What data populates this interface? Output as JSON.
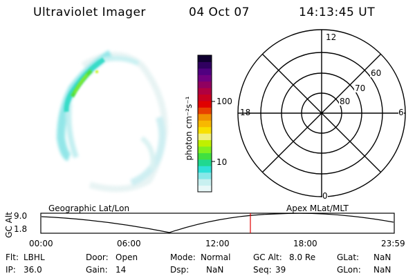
{
  "header": {
    "instrument": "Ultraviolet Imager",
    "date": "04 Oct 07",
    "time": "14:13:45 UT"
  },
  "colorbar": {
    "unit_label": "photon cm⁻²s⁻¹",
    "ticks": [
      "100",
      "10"
    ],
    "colors": [
      "#e8f8f8",
      "#c8f0f0",
      "#88e8e8",
      "#30e0d8",
      "#20d890",
      "#40e040",
      "#80f020",
      "#c0f000",
      "#f0f080",
      "#f8e000",
      "#f8b800",
      "#f09000",
      "#e84000",
      "#e00000",
      "#c80020",
      "#b00040",
      "#900060",
      "#700080",
      "#500080",
      "#300060",
      "#100030"
    ]
  },
  "polar": {
    "labels": {
      "top": "12",
      "left": "18",
      "right": "6",
      "bottom": "0"
    },
    "lat_labels": [
      "60",
      "70",
      "80"
    ]
  },
  "timeline": {
    "left_title": "Geographic Lat/Lon",
    "right_title": "Apex  MLat/MLT",
    "y_axis_label": "GC Alt",
    "y_ticks": [
      "9.0",
      "1.8"
    ],
    "x_ticks": [
      "00:00",
      "06:00",
      "12:00",
      "18:00",
      "23:59"
    ],
    "current_time_hours": 14.23,
    "marker_color": "#e00000"
  },
  "status": {
    "col1": [
      {
        "k": "Flt:",
        "v": "LBHL"
      },
      {
        "k": "IP:",
        "v": "36.0"
      }
    ],
    "col2": [
      {
        "k": "Door:",
        "v": "Open"
      },
      {
        "k": "Gain:",
        "v": "14"
      }
    ],
    "col3": [
      {
        "k": "Mode:",
        "v": "Normal"
      },
      {
        "k": "Dsp:",
        "v": "NaN"
      }
    ],
    "col4": [
      {
        "k": "GC Alt:",
        "v": "8.0 Re"
      },
      {
        "k": "Seq:",
        "v": "39"
      }
    ],
    "col5": [
      {
        "k": "GLat:",
        "v": "NaN"
      },
      {
        "k": "GLon:",
        "v": "NaN"
      }
    ]
  }
}
